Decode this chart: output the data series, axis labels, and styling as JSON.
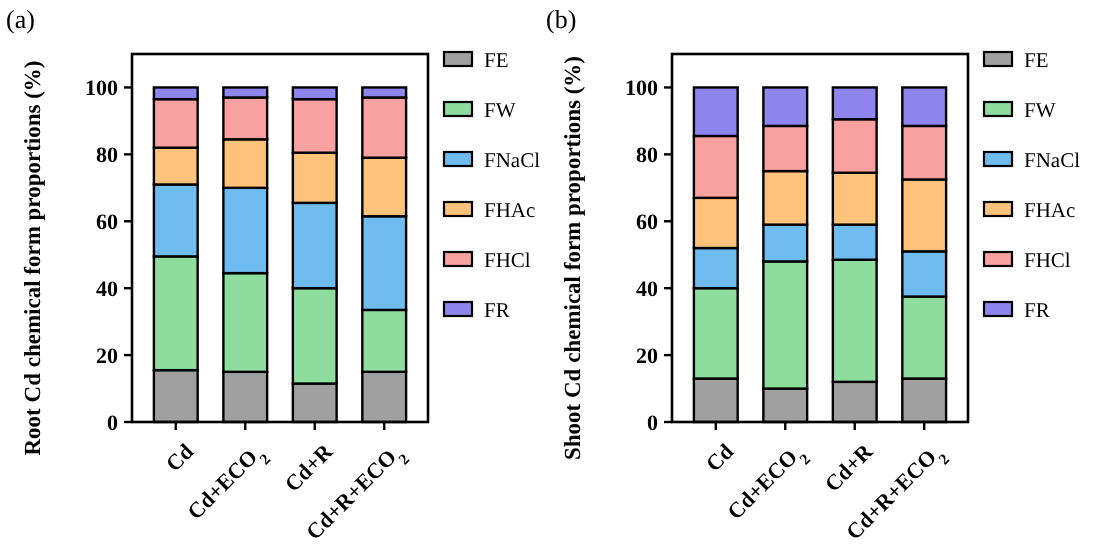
{
  "chart_data": [
    {
      "type": "bar",
      "stacked": true,
      "ylabel": "Root Cd chemical form proportions (%)",
      "annotations": [
        "(a)"
      ],
      "categories": [
        "Cd",
        "Cd+ECO$_{2}$",
        "Cd+R",
        "Cd+R+ECO$_{2}$"
      ],
      "ylim": [
        0,
        110
      ],
      "yticks": [
        0,
        20,
        40,
        60,
        80,
        100
      ],
      "grid": false,
      "legend": "right",
      "series": [
        {
          "name": "FE",
          "color": "#a0a0a0",
          "values": [
            15.5,
            15,
            11.5,
            15
          ]
        },
        {
          "name": "FW",
          "color": "#8fdc9f",
          "values": [
            34,
            29.5,
            28.5,
            18.5
          ]
        },
        {
          "name": "FNaCl",
          "color": "#6fbcf0",
          "values": [
            21.5,
            25.5,
            25.5,
            28
          ]
        },
        {
          "name": "FHAc",
          "color": "#ffc27a",
          "values": [
            11,
            14.5,
            15,
            17.5
          ]
        },
        {
          "name": "FHCl",
          "color": "#f9a0a0",
          "values": [
            14.5,
            12.5,
            16,
            18
          ]
        },
        {
          "name": "FR",
          "color": "#8f85ee",
          "values": [
            3.5,
            3,
            3.5,
            3
          ]
        }
      ]
    },
    {
      "type": "bar",
      "stacked": true,
      "ylabel": "Shoot Cd chemical form proportions (%)",
      "annotations": [
        "(b)"
      ],
      "categories": [
        "Cd",
        "Cd+ECO$_{2}$",
        "Cd+R",
        "Cd+R+ECO$_{2}$"
      ],
      "ylim": [
        0,
        110
      ],
      "yticks": [
        0,
        20,
        40,
        60,
        80,
        100
      ],
      "grid": false,
      "legend": "right",
      "series": [
        {
          "name": "FE",
          "color": "#a0a0a0",
          "values": [
            13,
            10,
            12,
            13
          ]
        },
        {
          "name": "FW",
          "color": "#8fdc9f",
          "values": [
            27,
            38,
            36.5,
            24.5
          ]
        },
        {
          "name": "FNaCl",
          "color": "#6fbcf0",
          "values": [
            12,
            11,
            10.5,
            13.5
          ]
        },
        {
          "name": "FHAc",
          "color": "#ffc27a",
          "values": [
            15,
            16,
            15.5,
            21.5
          ]
        },
        {
          "name": "FHCl",
          "color": "#f9a0a0",
          "values": [
            18.5,
            13.5,
            16,
            16
          ]
        },
        {
          "name": "FR",
          "color": "#8f85ee",
          "values": [
            14.5,
            11.5,
            9.5,
            11.5
          ]
        }
      ]
    }
  ]
}
